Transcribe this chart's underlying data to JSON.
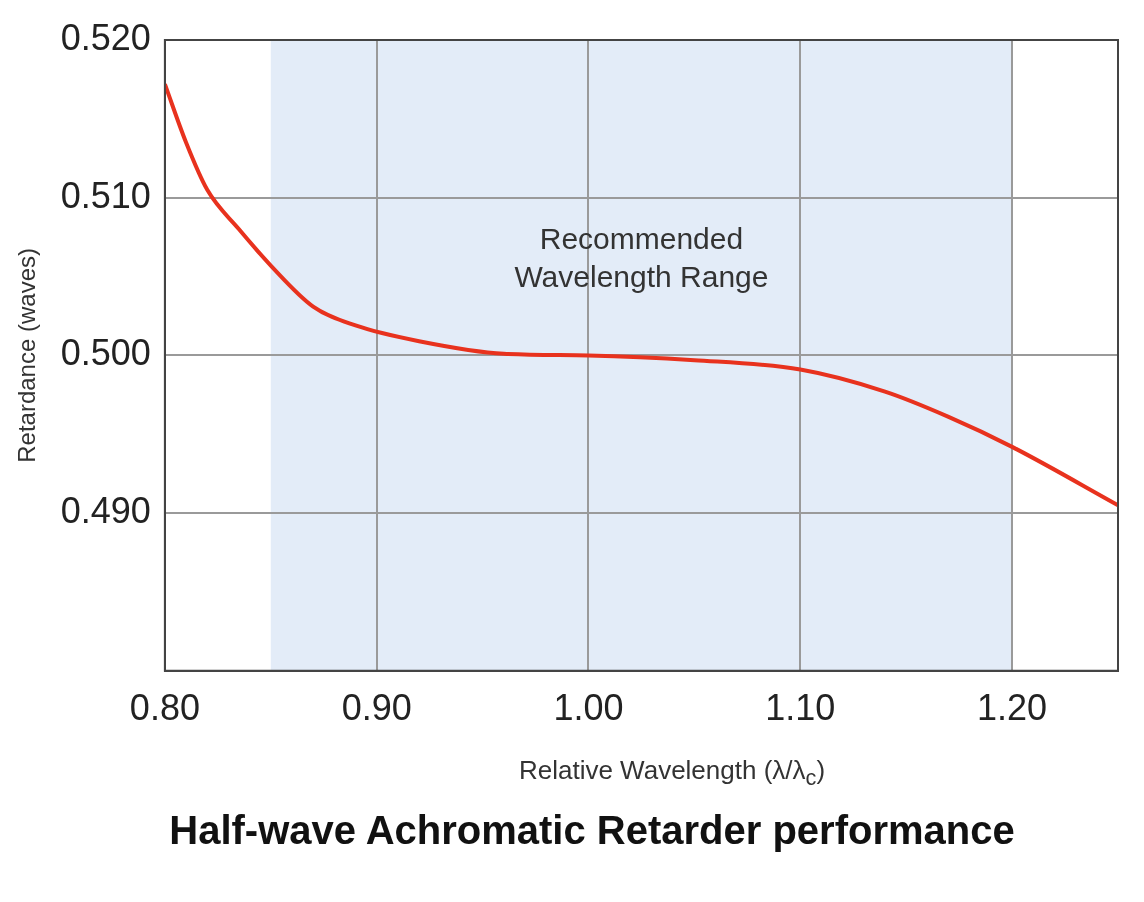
{
  "chart_data": {
    "type": "line",
    "title": "Half-wave Achromatic Retarder performance",
    "xlabel": "Relative Wavelength (λ/λ$_{c}$)",
    "ylabel": "Retardance (waves)",
    "x": [
      0.8,
      0.81,
      0.82,
      0.835,
      0.85,
      0.87,
      0.89,
      0.92,
      0.96,
      1.0,
      1.05,
      1.1,
      1.14,
      1.17,
      1.2,
      1.25
    ],
    "series": [
      {
        "color": "#e8321e",
        "values": [
          0.5172,
          0.5135,
          0.5105,
          0.508,
          0.5057,
          0.5031,
          0.5019,
          0.5009,
          0.5001,
          0.5,
          0.4997,
          0.4991,
          0.4977,
          0.4961,
          0.4942,
          0.4905
        ]
      }
    ],
    "xlim": [
      0.8,
      1.25
    ],
    "xticks": [
      {
        "value": 0.8,
        "label": "0.80"
      },
      {
        "value": 0.9,
        "label": "0.90"
      },
      {
        "value": 1.0,
        "label": "1.00"
      },
      {
        "value": 1.1,
        "label": "1.10"
      },
      {
        "value": 1.2,
        "label": "1.20"
      }
    ],
    "ylim": [
      0.48,
      0.52
    ],
    "yticks": [
      {
        "value": 0.49,
        "label": "0.490"
      },
      {
        "value": 0.5,
        "label": "0.500"
      },
      {
        "value": 0.51,
        "label": "0.510"
      },
      {
        "value": 0.52,
        "label": "0.520"
      }
    ],
    "bands": [
      {
        "axis": "x",
        "from": 0.85,
        "to": 1.2,
        "label": "Recommended\nWavelength Range",
        "color": "#e3ecf8"
      }
    ],
    "grid": true,
    "legend": false,
    "marker": "none",
    "line_style": "solid"
  }
}
